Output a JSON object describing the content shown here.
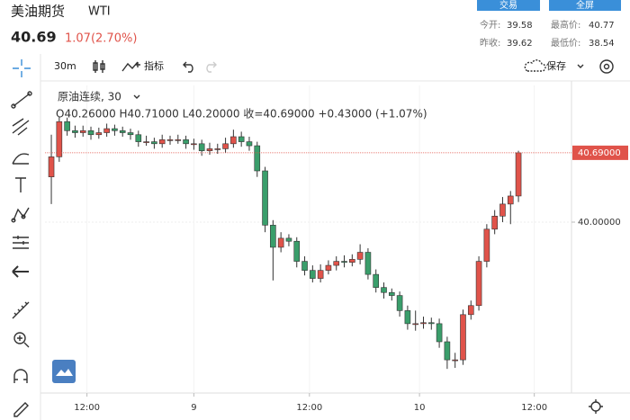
{
  "header": {
    "title": "美油期货",
    "code": "WTI",
    "price": "40.69",
    "change": "1.07(2.70%)",
    "buttons": [
      "交易",
      "全屏"
    ],
    "stats": [
      {
        "label": "今开:",
        "value": "39.58"
      },
      {
        "label": "最高价:",
        "value": "40.77"
      },
      {
        "label": "昨收:",
        "value": "39.62"
      },
      {
        "label": "最低价:",
        "value": "38.54"
      }
    ]
  },
  "toolbar": {
    "interval": "30m",
    "indicator": "指标",
    "save": "保存"
  },
  "legend": {
    "symbol": "原油连续, 30",
    "ohlc": "O40.26000 H40.71000 L40.20000 收=40.69000 +0.43000 (+1.07%)"
  },
  "chart_data": {
    "type": "candlestick",
    "up_color": "#e0534a",
    "down_color": "#3a9e6b",
    "open": [
      40.45,
      40.65,
      41.0,
      40.91,
      40.89,
      40.91,
      40.87,
      40.89,
      40.93,
      40.91,
      40.89,
      40.87,
      40.8,
      40.8,
      40.78,
      40.82,
      40.82,
      40.82,
      40.78,
      40.78,
      40.71,
      40.73,
      40.73,
      40.78,
      40.85,
      40.8,
      40.76,
      40.51,
      39.97,
      39.75,
      39.84,
      39.81,
      39.61,
      39.52,
      39.44,
      39.52,
      39.57,
      39.61,
      39.6,
      39.63,
      39.7,
      39.48,
      39.35,
      39.3,
      39.27,
      39.12,
      38.99,
      38.99,
      39.0,
      38.99,
      38.81,
      38.63,
      38.63,
      39.08,
      39.17,
      39.61,
      39.93,
      40.06,
      40.18,
      40.26
    ],
    "high": [
      40.87,
      41.05,
      41.04,
      40.96,
      40.96,
      40.95,
      40.94,
      40.98,
      40.97,
      40.95,
      40.93,
      40.91,
      40.86,
      40.84,
      40.87,
      40.86,
      40.87,
      40.86,
      40.83,
      40.82,
      40.79,
      40.78,
      40.84,
      40.92,
      40.9,
      40.85,
      40.8,
      40.55,
      40.02,
      39.9,
      39.88,
      39.85,
      39.66,
      39.57,
      39.58,
      39.62,
      39.66,
      39.67,
      39.68,
      39.78,
      39.74,
      39.53,
      39.4,
      39.34,
      39.31,
      39.17,
      39.12,
      39.06,
      39.05,
      39.04,
      38.86,
      38.7,
      39.13,
      39.22,
      39.66,
      39.98,
      40.12,
      40.25,
      40.31,
      40.71
    ],
    "low": [
      40.18,
      40.6,
      40.86,
      40.84,
      40.85,
      40.82,
      40.83,
      40.85,
      40.86,
      40.85,
      40.82,
      40.75,
      40.76,
      40.73,
      40.74,
      40.77,
      40.78,
      40.73,
      40.72,
      40.66,
      40.67,
      40.68,
      40.69,
      40.74,
      40.75,
      40.71,
      40.45,
      39.9,
      39.42,
      39.7,
      39.76,
      39.55,
      39.47,
      39.4,
      39.4,
      39.48,
      39.52,
      39.55,
      39.56,
      39.58,
      39.43,
      39.3,
      39.24,
      39.22,
      39.06,
      38.93,
      38.92,
      38.94,
      38.93,
      38.75,
      38.54,
      38.55,
      38.58,
      39.03,
      39.12,
      39.55,
      39.88,
      40.0,
      39.98,
      40.2
    ],
    "close": [
      40.65,
      41.0,
      40.91,
      40.89,
      40.91,
      40.87,
      40.89,
      40.93,
      40.91,
      40.89,
      40.87,
      40.8,
      40.8,
      40.78,
      40.82,
      40.82,
      40.82,
      40.78,
      40.78,
      40.71,
      40.73,
      40.73,
      40.78,
      40.85,
      40.8,
      40.76,
      40.51,
      39.97,
      39.75,
      39.84,
      39.81,
      39.61,
      39.52,
      39.44,
      39.52,
      39.57,
      39.61,
      39.6,
      39.63,
      39.7,
      39.48,
      39.35,
      39.3,
      39.27,
      39.12,
      38.99,
      38.99,
      39.0,
      38.99,
      38.81,
      38.63,
      38.63,
      39.08,
      39.17,
      39.61,
      39.93,
      40.06,
      40.18,
      40.26,
      40.69
    ],
    "xlim": [
      -0.8,
      65.7
    ],
    "xticks": [
      {
        "value": 4.5,
        "label": "12:00"
      },
      {
        "value": 18,
        "label": "9"
      },
      {
        "value": 32.6,
        "label": "12:00"
      },
      {
        "value": 46.5,
        "label": "10"
      },
      {
        "value": 61,
        "label": "12:00"
      }
    ],
    "ylim": [
      38.3,
      41.36
    ],
    "yticks": [
      {
        "value": 40,
        "label": "40.00000"
      }
    ],
    "grid": true,
    "last_price": 40.69,
    "last_price_label": "40.69000"
  }
}
